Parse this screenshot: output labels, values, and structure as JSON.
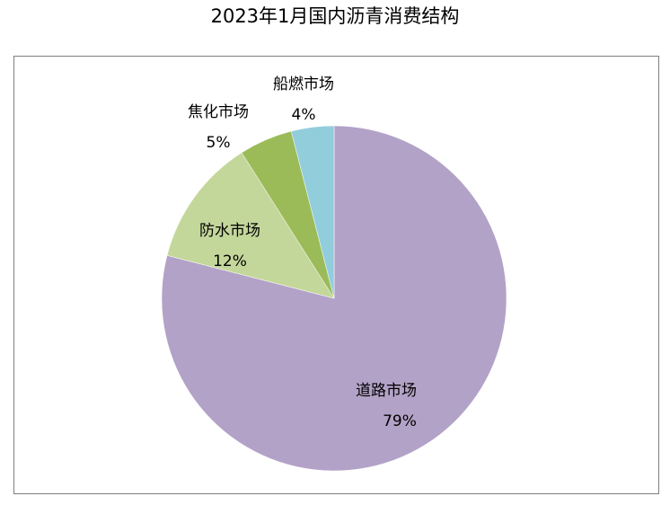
{
  "chart_data": {
    "type": "pie",
    "title": "2023年1月国内沥青消费结构",
    "categories": [
      "道路市场",
      "防水市场",
      "焦化市场",
      "船燃市场"
    ],
    "values": [
      79,
      12,
      5,
      4
    ],
    "percent_labels": [
      "79%",
      "12%",
      "5%",
      "4%"
    ],
    "unit": "%",
    "start_angle": "12 o'clock",
    "direction": "clockwise",
    "legend": "none",
    "data_labels": "category name and percent",
    "colors": {
      "道路市场": "#b3a2c7",
      "防水市场": "#c4d79b",
      "焦化市场": "#9bbb59",
      "船燃市场": "#92cddc"
    }
  }
}
